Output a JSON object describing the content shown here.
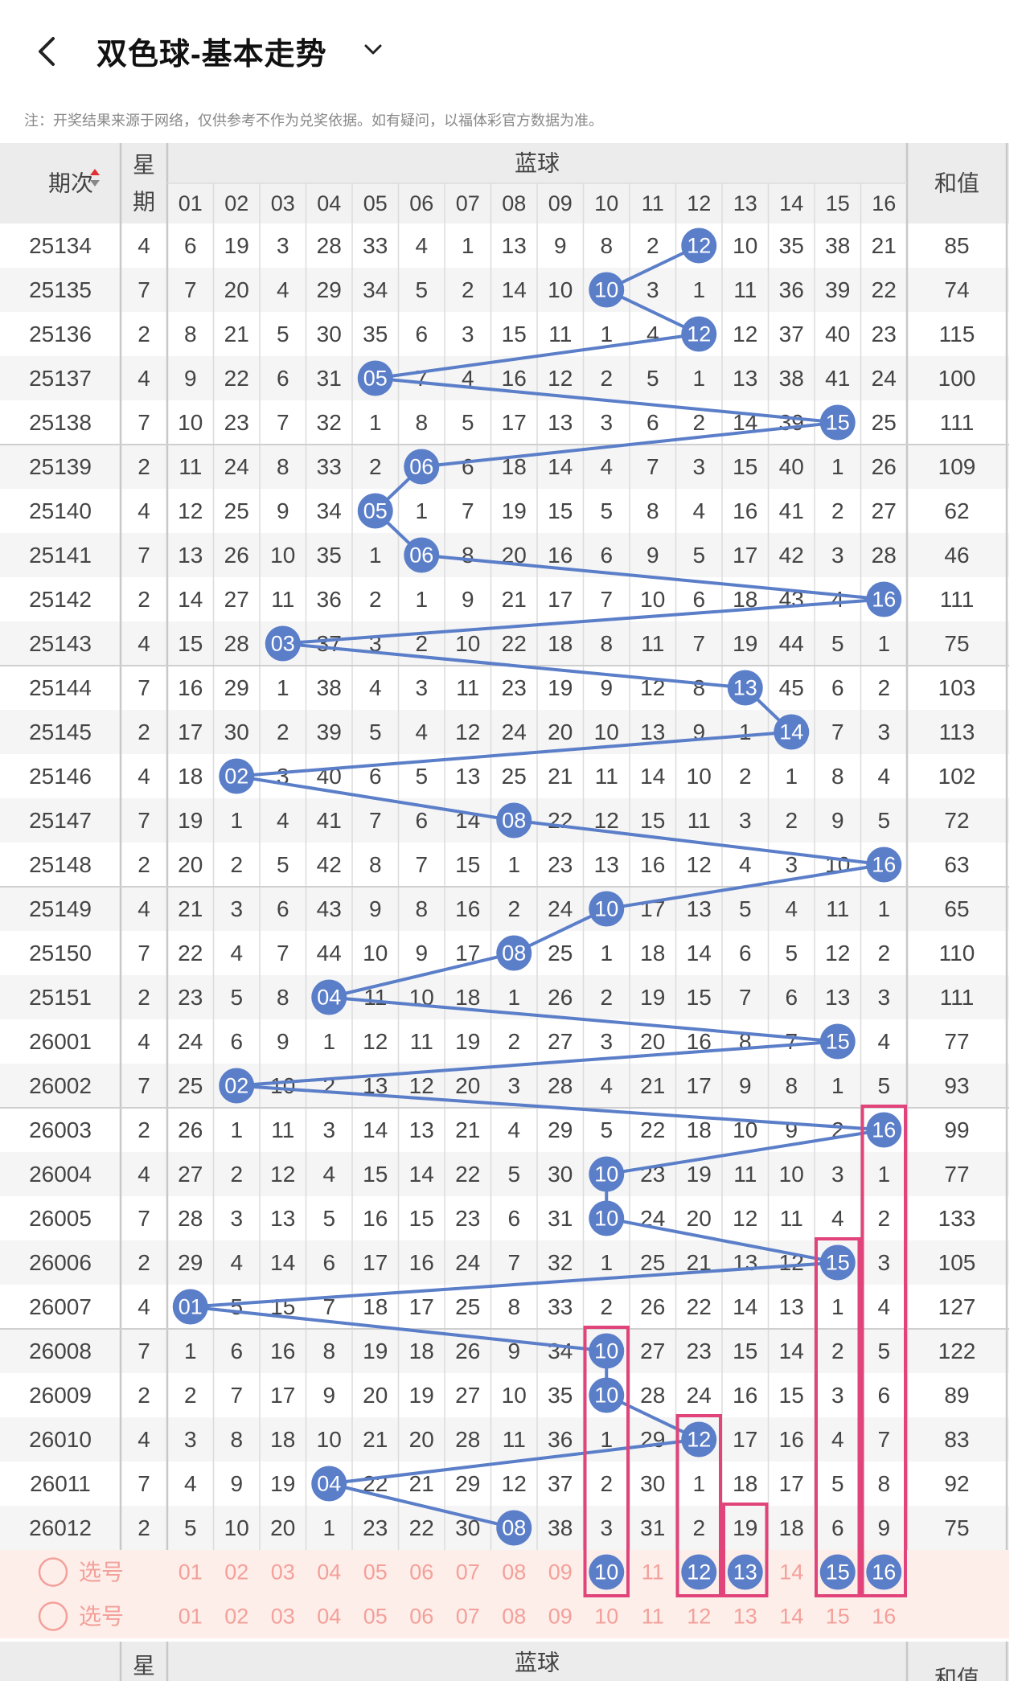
{
  "header": {
    "title": "双色球-基本走势",
    "back_icon": "back-chevron-icon",
    "dropdown_icon": "chevron-down-icon"
  },
  "note": "注：开奖结果来源于网络，仅供参考不作为兑奖依据。如有疑问，以福体彩官方数据为准。",
  "table": {
    "col_period": "期次",
    "col_week_top": "星",
    "col_week_bottom": "期",
    "group_label": "蓝球",
    "col_sum": "和值",
    "numbers": [
      "01",
      "02",
      "03",
      "04",
      "05",
      "06",
      "07",
      "08",
      "09",
      "10",
      "11",
      "12",
      "13",
      "14",
      "15",
      "16"
    ],
    "rows": [
      {
        "period": "25134",
        "week": "4",
        "cells": [
          6,
          19,
          3,
          28,
          33,
          4,
          1,
          13,
          9,
          8,
          2,
          12,
          10,
          35,
          38,
          21
        ],
        "sum": "85",
        "hit": 12
      },
      {
        "period": "25135",
        "week": "7",
        "cells": [
          7,
          20,
          4,
          29,
          34,
          5,
          2,
          14,
          10,
          10,
          3,
          1,
          11,
          36,
          39,
          22
        ],
        "sum": "74",
        "hit": 10
      },
      {
        "period": "25136",
        "week": "2",
        "cells": [
          8,
          21,
          5,
          30,
          35,
          6,
          3,
          15,
          11,
          1,
          4,
          12,
          12,
          37,
          40,
          23
        ],
        "sum": "115",
        "hit": 12
      },
      {
        "period": "25137",
        "week": "4",
        "cells": [
          9,
          22,
          6,
          31,
          5,
          7,
          4,
          16,
          12,
          2,
          5,
          1,
          13,
          38,
          41,
          24
        ],
        "sum": "100",
        "hit": 5
      },
      {
        "period": "25138",
        "week": "7",
        "cells": [
          10,
          23,
          7,
          32,
          1,
          8,
          5,
          17,
          13,
          3,
          6,
          2,
          14,
          39,
          15,
          25
        ],
        "sum": "111",
        "hit": 15
      },
      {
        "period": "25139",
        "week": "2",
        "cells": [
          11,
          24,
          8,
          33,
          2,
          6,
          6,
          18,
          14,
          4,
          7,
          3,
          15,
          40,
          1,
          26
        ],
        "sum": "109",
        "hit": 6
      },
      {
        "period": "25140",
        "week": "4",
        "cells": [
          12,
          25,
          9,
          34,
          5,
          1,
          7,
          19,
          15,
          5,
          8,
          4,
          16,
          41,
          2,
          27
        ],
        "sum": "62",
        "hit": 5
      },
      {
        "period": "25141",
        "week": "7",
        "cells": [
          13,
          26,
          10,
          35,
          1,
          6,
          8,
          20,
          16,
          6,
          9,
          5,
          17,
          42,
          3,
          28
        ],
        "sum": "46",
        "hit": 6
      },
      {
        "period": "25142",
        "week": "2",
        "cells": [
          14,
          27,
          11,
          36,
          2,
          1,
          9,
          21,
          17,
          7,
          10,
          6,
          18,
          43,
          4,
          16
        ],
        "sum": "111",
        "hit": 16
      },
      {
        "period": "25143",
        "week": "4",
        "cells": [
          15,
          28,
          3,
          37,
          3,
          2,
          10,
          22,
          18,
          8,
          11,
          7,
          19,
          44,
          5,
          1
        ],
        "sum": "75",
        "hit": 3
      },
      {
        "period": "25144",
        "week": "7",
        "cells": [
          16,
          29,
          1,
          38,
          4,
          3,
          11,
          23,
          19,
          9,
          12,
          8,
          13,
          45,
          6,
          2
        ],
        "sum": "103",
        "hit": 13
      },
      {
        "period": "25145",
        "week": "2",
        "cells": [
          17,
          30,
          2,
          39,
          5,
          4,
          12,
          24,
          20,
          10,
          13,
          9,
          1,
          14,
          7,
          3
        ],
        "sum": "113",
        "hit": 14
      },
      {
        "period": "25146",
        "week": "4",
        "cells": [
          18,
          2,
          3,
          40,
          6,
          5,
          13,
          25,
          21,
          11,
          14,
          10,
          2,
          1,
          8,
          4
        ],
        "sum": "102",
        "hit": 2
      },
      {
        "period": "25147",
        "week": "7",
        "cells": [
          19,
          1,
          4,
          41,
          7,
          6,
          14,
          8,
          22,
          12,
          15,
          11,
          3,
          2,
          9,
          5
        ],
        "sum": "72",
        "hit": 8
      },
      {
        "period": "25148",
        "week": "2",
        "cells": [
          20,
          2,
          5,
          42,
          8,
          7,
          15,
          1,
          23,
          13,
          16,
          12,
          4,
          3,
          10,
          16
        ],
        "sum": "63",
        "hit": 16
      },
      {
        "period": "25149",
        "week": "4",
        "cells": [
          21,
          3,
          6,
          43,
          9,
          8,
          16,
          2,
          24,
          10,
          17,
          13,
          5,
          4,
          11,
          1
        ],
        "sum": "65",
        "hit": 10
      },
      {
        "period": "25150",
        "week": "7",
        "cells": [
          22,
          4,
          7,
          44,
          10,
          9,
          17,
          8,
          25,
          1,
          18,
          14,
          6,
          5,
          12,
          2
        ],
        "sum": "110",
        "hit": 8
      },
      {
        "period": "25151",
        "week": "2",
        "cells": [
          23,
          5,
          8,
          4,
          11,
          10,
          18,
          1,
          26,
          2,
          19,
          15,
          7,
          6,
          13,
          3
        ],
        "sum": "111",
        "hit": 4
      },
      {
        "period": "26001",
        "week": "4",
        "cells": [
          24,
          6,
          9,
          1,
          12,
          11,
          19,
          2,
          27,
          3,
          20,
          16,
          8,
          7,
          15,
          4
        ],
        "sum": "77",
        "hit": 15
      },
      {
        "period": "26002",
        "week": "7",
        "cells": [
          25,
          2,
          10,
          2,
          13,
          12,
          20,
          3,
          28,
          4,
          21,
          17,
          9,
          8,
          1,
          5
        ],
        "sum": "93",
        "hit": 2
      },
      {
        "period": "26003",
        "week": "2",
        "cells": [
          26,
          1,
          11,
          3,
          14,
          13,
          21,
          4,
          29,
          5,
          22,
          18,
          10,
          9,
          2,
          16
        ],
        "sum": "99",
        "hit": 16
      },
      {
        "period": "26004",
        "week": "4",
        "cells": [
          27,
          2,
          12,
          4,
          15,
          14,
          22,
          5,
          30,
          10,
          23,
          19,
          11,
          10,
          3,
          1
        ],
        "sum": "77",
        "hit": 10
      },
      {
        "period": "26005",
        "week": "7",
        "cells": [
          28,
          3,
          13,
          5,
          16,
          15,
          23,
          6,
          31,
          10,
          24,
          20,
          12,
          11,
          4,
          2
        ],
        "sum": "133",
        "hit": 10
      },
      {
        "period": "26006",
        "week": "2",
        "cells": [
          29,
          4,
          14,
          6,
          17,
          16,
          24,
          7,
          32,
          1,
          25,
          21,
          13,
          12,
          15,
          3
        ],
        "sum": "105",
        "hit": 15
      },
      {
        "period": "26007",
        "week": "4",
        "cells": [
          1,
          5,
          15,
          7,
          18,
          17,
          25,
          8,
          33,
          2,
          26,
          22,
          14,
          13,
          1,
          4
        ],
        "sum": "127",
        "hit": 1
      },
      {
        "period": "26008",
        "week": "7",
        "cells": [
          1,
          6,
          16,
          8,
          19,
          18,
          26,
          9,
          34,
          10,
          27,
          23,
          15,
          14,
          2,
          5
        ],
        "sum": "122",
        "hit": 10
      },
      {
        "period": "26009",
        "week": "2",
        "cells": [
          2,
          7,
          17,
          9,
          20,
          19,
          27,
          10,
          35,
          10,
          28,
          24,
          16,
          15,
          3,
          6
        ],
        "sum": "89",
        "hit": 10
      },
      {
        "period": "26010",
        "week": "4",
        "cells": [
          3,
          8,
          18,
          10,
          21,
          20,
          28,
          11,
          36,
          1,
          29,
          12,
          17,
          16,
          4,
          7
        ],
        "sum": "83",
        "hit": 12
      },
      {
        "period": "26011",
        "week": "7",
        "cells": [
          4,
          9,
          19,
          4,
          22,
          21,
          29,
          12,
          37,
          2,
          30,
          1,
          18,
          17,
          5,
          8
        ],
        "sum": "92",
        "hit": 4
      },
      {
        "period": "26012",
        "week": "2",
        "cells": [
          5,
          10,
          20,
          1,
          23,
          22,
          30,
          8,
          38,
          3,
          31,
          2,
          19,
          18,
          6,
          9
        ],
        "sum": "75",
        "hit": 8
      }
    ],
    "picker_label": "选号",
    "picker_rows": [
      {
        "label": "选号",
        "selected": [
          10,
          12,
          13,
          15,
          16
        ]
      },
      {
        "label": "选号",
        "selected": []
      }
    ],
    "highlight_boxes": [
      {
        "num": 10,
        "from": "26008",
        "to": "picker"
      },
      {
        "num": 12,
        "from": "26010",
        "to": "picker"
      },
      {
        "num": 13,
        "from": "26012",
        "to": "picker"
      },
      {
        "num": 15,
        "from": "26006",
        "to": "picker"
      },
      {
        "num": 16,
        "from": "26003",
        "to": "picker"
      }
    ]
  },
  "colors": {
    "ball": "#5b7ec9",
    "line": "#5b7ec9",
    "highlight": "#e0447a",
    "picker_bg": "#fdeeea",
    "picker_text": "#f4a09a",
    "header_bg": "#ececec",
    "alt_row": "#f5f5f5"
  }
}
